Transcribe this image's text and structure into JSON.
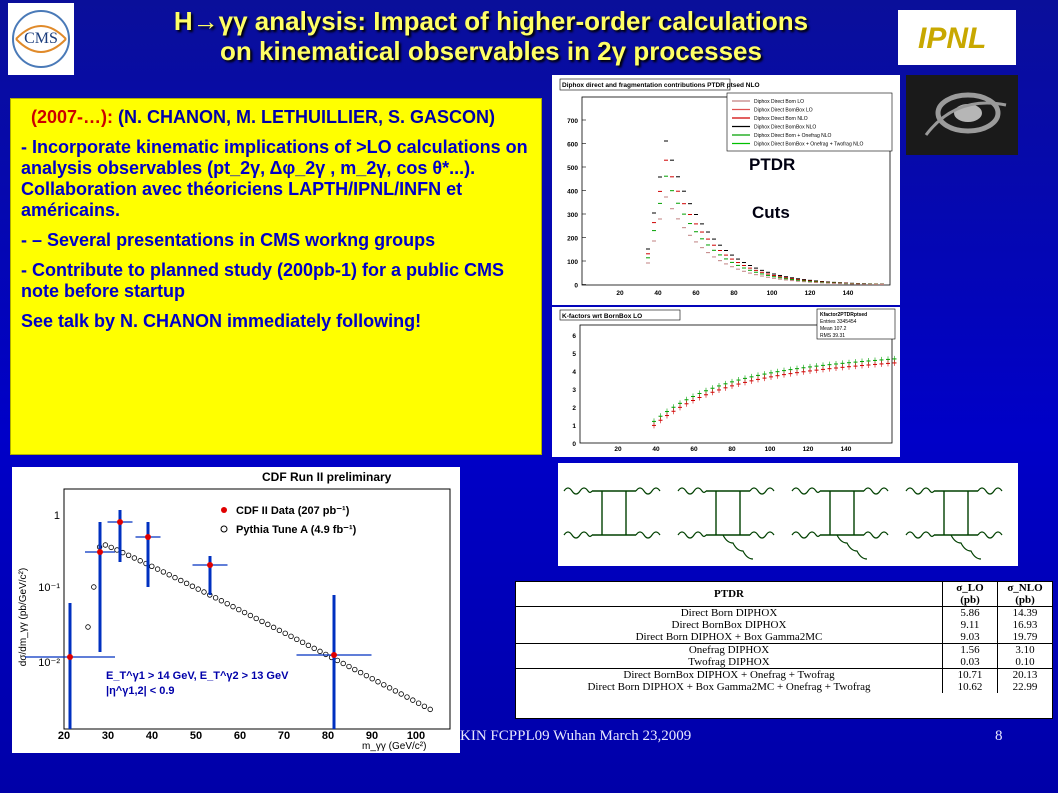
{
  "title": {
    "line1": "H→γγ analysis:  Impact of higher-order calculations",
    "line2": "on kinematical observables in 2γ processes"
  },
  "logos": {
    "cms": "CMS",
    "ipnl": "IPNL"
  },
  "text": {
    "people_years": "(2007-…):",
    "people_names": " (N. CHANON, M. LETHUILLIER, S. GASCON)",
    "bullet1": "- Incorporate kinematic implications of >LO calculations on analysis observables (pt_2γ, Δφ_2γ , m_2γ,  cos θ*...). Collaboration avec théoriciens LAPTH/IPNL/INFN et américains.",
    "bullet2": "- – Several presentations in CMS workng groups",
    "bullet3": "- Contribute to planned study (200pb-1) for a public CMS note before startup",
    "bullet4": "See talk by N. CHANON immediately following!"
  },
  "top_plot": {
    "title": "Diphox direct and fragmentation contributions PTDR ptsed NLO",
    "overlay1": "PTDR",
    "overlay2": "Cuts",
    "legend": [
      "Diphox Direct Born LO",
      "Diphox Direct BornBox LO",
      "Diphox Direct Born NLO",
      "Diphox Direct BornBox NLO",
      "Diphox Direct Born + Onefrag NLO",
      "Diphox Direct BornBox + Onefrag + Twofrag NLO"
    ],
    "yticks": [
      "700",
      "600",
      "500",
      "400",
      "300",
      "200",
      "100",
      "0"
    ],
    "xticks": [
      "20",
      "40",
      "60",
      "80",
      "100",
      "120",
      "140"
    ]
  },
  "bottom_plot": {
    "title": "K-factors wrt BornBox LO",
    "stats": [
      "Kfactor2PTDRptsed",
      "Entries  3345454",
      "Mean     107.2",
      "RMS       39.31"
    ],
    "yticks": [
      "6",
      "5",
      "4",
      "3",
      "2",
      "1",
      "0"
    ],
    "xticks": [
      "20",
      "40",
      "60",
      "80",
      "100",
      "120",
      "140"
    ]
  },
  "cdf": {
    "title": "CDF Run II preliminary",
    "legend1": "CDF II Data (207 pb⁻¹)",
    "legend2": "Pythia Tune A (4.9 fb⁻¹)",
    "ylabel": "dσ/dm_γγ (pb/GeV/c²)",
    "xlabel": "m_γγ (GeV/c²)",
    "cut1": "E_T^γ1 > 14 GeV, E_T^γ2 > 13 GeV",
    "cut2": "|η^γ1,2| < 0.9",
    "yticks": [
      "1",
      "10⁻¹",
      "10⁻²"
    ],
    "xticks": [
      "20",
      "30",
      "40",
      "50",
      "60",
      "70",
      "80",
      "90",
      "100"
    ]
  },
  "table": {
    "headers": [
      "PTDR",
      "σ_LO (pb)",
      "σ_NLO (pb)"
    ],
    "rows": [
      [
        "Direct Born DIPHOX",
        "5.86",
        "14.39"
      ],
      [
        "Direct BornBox DIPHOX",
        "9.11",
        "16.93"
      ],
      [
        "Direct Born DIPHOX + Box Gamma2MC",
        "9.03",
        "19.79"
      ],
      [
        "Onefrag DIPHOX",
        "1.56",
        "3.10"
      ],
      [
        "Twofrag DIPHOX",
        "0.03",
        "0.10"
      ],
      [
        "Direct BornBox DIPHOX + Onefrag + Twofrag",
        "10.71",
        "20.13"
      ],
      [
        "Direct Born DIPHOX + Box Gamma2MC + Onefrag + Twofrag",
        "10.62",
        "22.99"
      ]
    ]
  },
  "footer": "KIN FCPPL09 Wuhan March 23,2009",
  "page": "8",
  "colors": {
    "background": "#0000c8",
    "title": "#ffff66",
    "textbox": "#ffff00",
    "text": "#0000c8",
    "highlight": "#cc0000"
  }
}
